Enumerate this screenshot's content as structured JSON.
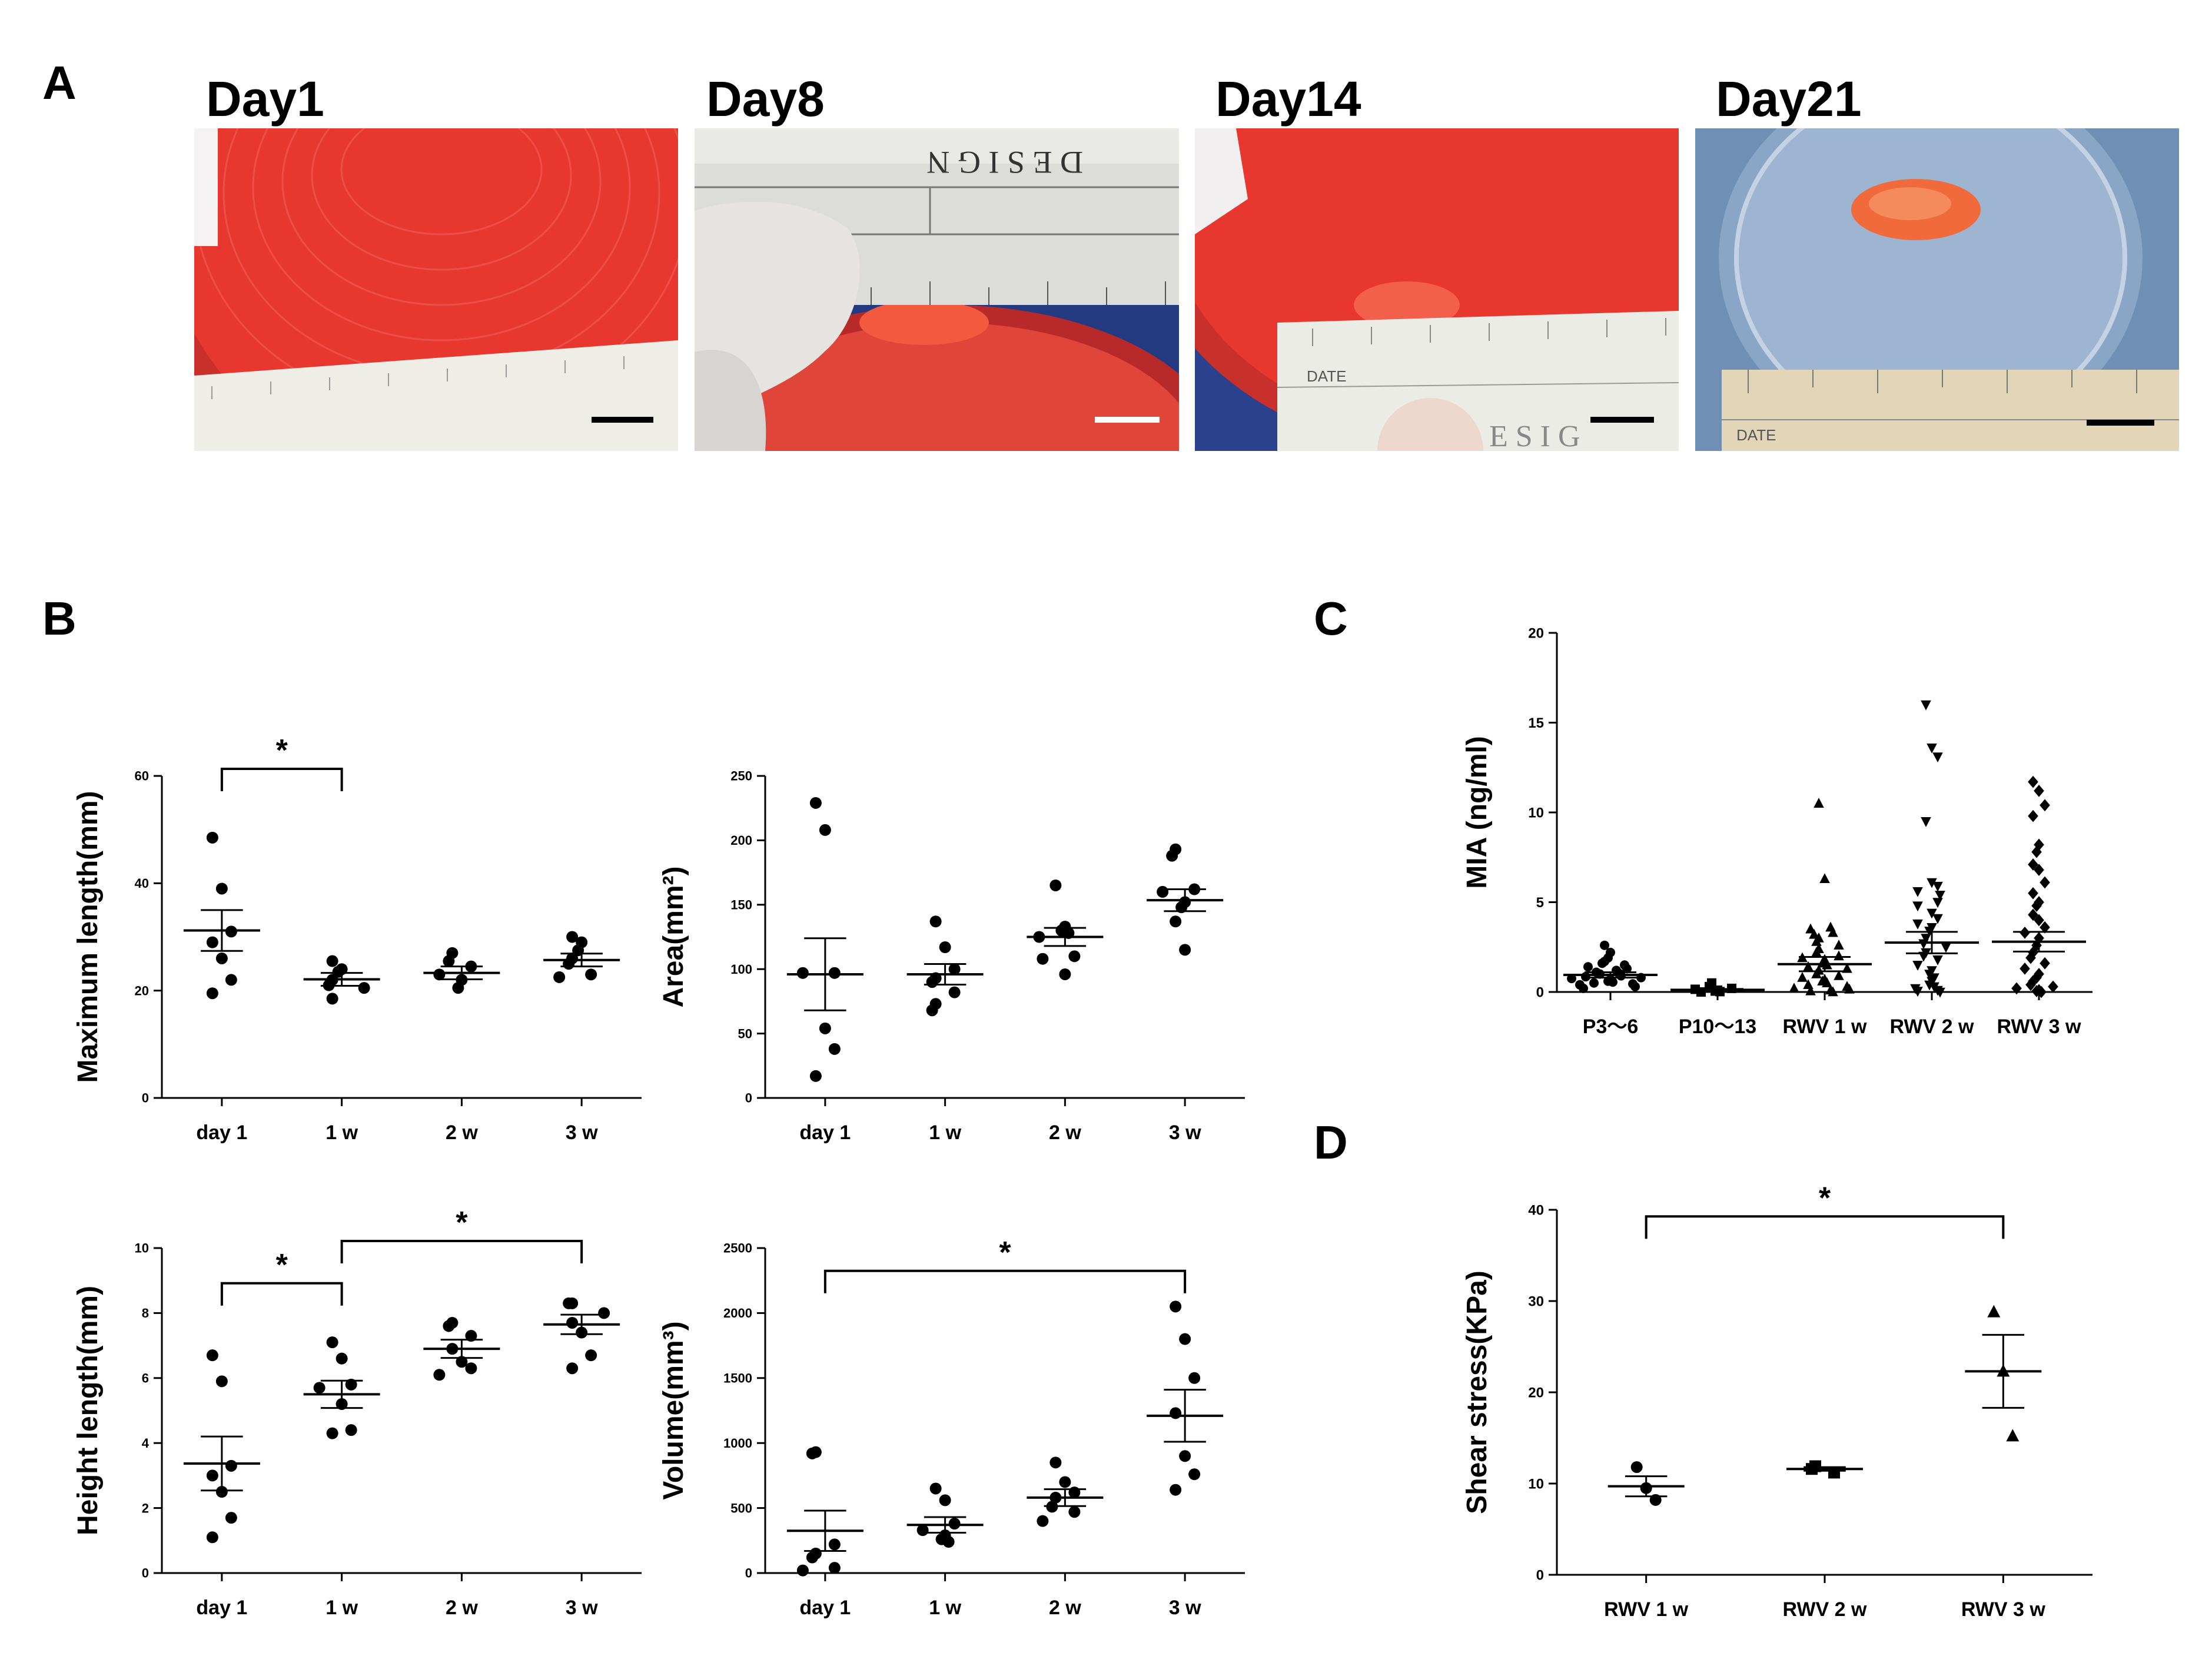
{
  "panels": {
    "A": "A",
    "B": "B",
    "C": "C",
    "D": "D"
  },
  "photos": [
    {
      "title": "Day1",
      "icon": "culture-dish-photo",
      "bar_color": "#000000"
    },
    {
      "title": "Day8",
      "icon": "culture-dish-photo",
      "bar_color": "#ffffff",
      "ruler_text": "D E S I G N"
    },
    {
      "title": "Day14",
      "icon": "culture-dish-photo",
      "bar_color": "#000000",
      "ruler_text": "DATE",
      "ruler_text2": "E S I G"
    },
    {
      "title": "Day21",
      "icon": "culture-dish-photo",
      "bar_color": "#000000",
      "ruler_text": "DATE"
    }
  ],
  "colors": {
    "medium_red": "#e8372f",
    "tissue": "#f06a3c",
    "background_blue": "#6f8fb5"
  },
  "chart_data": [
    {
      "id": "max-length",
      "type": "scatter",
      "ylabel": "Maximum length(mm)",
      "ylim": [
        0,
        60
      ],
      "yticks": [
        0,
        20,
        40,
        60
      ],
      "categories": [
        "day 1",
        "1 w",
        "2 w",
        "3 w"
      ],
      "points": [
        [
          48.5,
          39,
          31,
          29,
          26,
          22,
          19.5
        ],
        [
          25.5,
          24,
          23.5,
          22,
          21,
          20.5,
          18.5
        ],
        [
          27,
          25.5,
          24.5,
          23,
          22,
          20.5
        ],
        [
          30,
          29,
          27.5,
          26,
          25,
          23,
          22.5
        ]
      ],
      "mean": [
        31.2,
        22.1,
        23.3,
        25.7
      ],
      "sem": [
        3.8,
        1.2,
        1.2,
        1.2
      ],
      "signif": [
        {
          "from": 0,
          "to": 1,
          "y": 60,
          "label": "*"
        }
      ]
    },
    {
      "id": "area",
      "type": "scatter",
      "ylabel": "Area(mm²)",
      "ylim": [
        0,
        250
      ],
      "yticks": [
        0,
        50,
        100,
        150,
        200,
        250
      ],
      "categories": [
        "day 1",
        "1 w",
        "2 w",
        "3 w"
      ],
      "points": [
        [
          229,
          208,
          97,
          97,
          54,
          38,
          17
        ],
        [
          137,
          117,
          100,
          93,
          90,
          82,
          73,
          68
        ],
        [
          165,
          133,
          130,
          128,
          125,
          110,
          108,
          96
        ],
        [
          193,
          188,
          162,
          160,
          152,
          148,
          137,
          115
        ]
      ],
      "mean": [
        96,
        96,
        125,
        153.5
      ],
      "sem": [
        28,
        8,
        7,
        8.5
      ],
      "signif": []
    },
    {
      "id": "height-length",
      "type": "scatter",
      "ylabel": "Height length(mm)",
      "ylim": [
        0,
        10
      ],
      "yticks": [
        0,
        2,
        4,
        6,
        8,
        10
      ],
      "categories": [
        "day 1",
        "1 w",
        "2 w",
        "3 w"
      ],
      "points": [
        [
          6.7,
          5.9,
          3.3,
          3.0,
          2.5,
          1.7,
          1.1
        ],
        [
          7.1,
          6.6,
          5.8,
          5.7,
          5.2,
          4.4,
          4.3
        ],
        [
          7.7,
          7.6,
          7.3,
          6.9,
          6.5,
          6.3,
          6.1
        ],
        [
          8.3,
          8.3,
          8.0,
          7.7,
          7.4,
          6.7,
          6.3
        ]
      ],
      "mean": [
        3.37,
        5.5,
        6.9,
        7.65
      ],
      "sem": [
        0.83,
        0.42,
        0.28,
        0.3
      ],
      "signif": [
        {
          "from": 0,
          "to": 1,
          "y": 8.7,
          "label": "*"
        },
        {
          "from": 1,
          "to": 3,
          "y": 10.0,
          "label": "*"
        }
      ]
    },
    {
      "id": "volume",
      "type": "scatter",
      "ylabel": "Volume(mm³)",
      "ylim": [
        0,
        2500
      ],
      "yticks": [
        0,
        500,
        1000,
        1500,
        2000,
        2500
      ],
      "categories": [
        "day 1",
        "1 w",
        "2 w",
        "3 w"
      ],
      "points": [
        [
          930,
          920,
          220,
          150,
          120,
          40,
          20
        ],
        [
          650,
          560,
          380,
          330,
          290,
          260,
          240
        ],
        [
          850,
          700,
          620,
          580,
          510,
          470,
          400
        ],
        [
          2050,
          1800,
          1500,
          1230,
          900,
          760,
          640
        ]
      ],
      "mean": [
        325,
        370,
        580,
        1210
      ],
      "sem": [
        155,
        60,
        65,
        200
      ],
      "signif": [
        {
          "from": 0,
          "to": 3,
          "y": 2270,
          "label": "*"
        }
      ]
    },
    {
      "id": "mia",
      "type": "scatter",
      "ylabel": "MIA (ng/ml)",
      "ylim": [
        0,
        20
      ],
      "yticks": [
        0,
        5,
        10,
        15,
        20
      ],
      "categories": [
        "P3〜6",
        "P10〜13",
        "RWV 1 w",
        "RWV 2 w",
        "RWV 3 w"
      ],
      "markers": [
        "circle",
        "square",
        "triangle-up",
        "triangle-down",
        "diamond"
      ],
      "points": [
        [
          2.6,
          2.2,
          1.9,
          1.7,
          1.6,
          1.5,
          1.4,
          1.3,
          1.2,
          1.1,
          1.05,
          1.0,
          0.9,
          0.85,
          0.8,
          0.75,
          0.7,
          0.6,
          0.55,
          0.5,
          0.45,
          0.4,
          0.3,
          0.2
        ],
        [
          0.5,
          0.3,
          0.2,
          0.15,
          0.1,
          0.05,
          0.02,
          0.0
        ],
        [
          10.5,
          6.3,
          3.6,
          3.5,
          3.3,
          3.2,
          3.0,
          2.8,
          2.6,
          2.4,
          2.2,
          2.0,
          1.9,
          1.8,
          1.6,
          1.5,
          1.4,
          1.3,
          1.2,
          1.0,
          0.9,
          0.8,
          0.7,
          0.6,
          0.5,
          0.4,
          0.3,
          0.2,
          0.15,
          0.1,
          0.05,
          0.0
        ],
        [
          16.0,
          13.6,
          13.1,
          9.5,
          6.1,
          5.9,
          5.6,
          5.4,
          5.0,
          4.8,
          4.4,
          4.1,
          3.8,
          3.6,
          3.4,
          3.0,
          2.7,
          2.5,
          2.2,
          2.0,
          1.8,
          1.5,
          1.2,
          1.0,
          0.8,
          0.6,
          0.4,
          0.3,
          0.2,
          0.1,
          0.05,
          0.0
        ],
        [
          11.7,
          11.2,
          10.4,
          9.8,
          8.2,
          7.8,
          7.1,
          6.8,
          6.1,
          5.5,
          5.0,
          4.8,
          4.3,
          4.0,
          3.6,
          3.3,
          3.0,
          2.6,
          2.2,
          1.9,
          1.6,
          1.3,
          1.0,
          0.8,
          0.6,
          0.4,
          0.3,
          0.2,
          0.1,
          0.05,
          0.0
        ]
      ],
      "mean": [
        0.95,
        0.12,
        1.55,
        2.75,
        2.8
      ],
      "sem": [
        0.15,
        0.05,
        0.4,
        0.6,
        0.55
      ],
      "signif": []
    },
    {
      "id": "shear",
      "type": "scatter",
      "ylabel": "Shear stress(KPa)",
      "ylim": [
        0,
        40
      ],
      "yticks": [
        0,
        10,
        20,
        30,
        40
      ],
      "categories": [
        "RWV 1 w",
        "RWV 2 w",
        "RWV 3 w"
      ],
      "markers": [
        "circle",
        "square",
        "triangle-up"
      ],
      "points": [
        [
          11.8,
          9.5,
          8.2
        ],
        [
          11.9,
          11.6,
          11.2
        ],
        [
          28.8,
          22.3,
          15.2
        ]
      ],
      "mean": [
        9.7,
        11.6,
        22.3
      ],
      "sem": [
        1.1,
        0.2,
        4.0
      ],
      "signif": [
        {
          "from": 0,
          "to": 2,
          "y": 38.5,
          "label": "*"
        }
      ]
    }
  ]
}
